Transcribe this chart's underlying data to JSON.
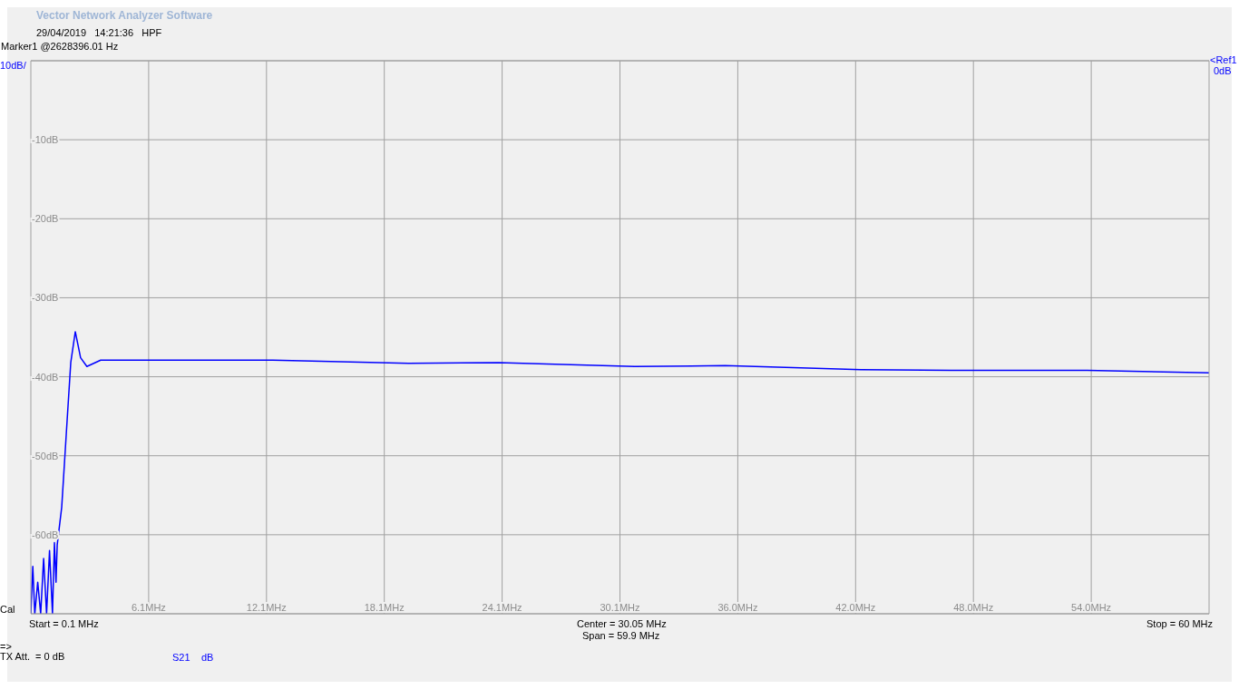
{
  "chart_data": {
    "type": "line",
    "title": "Vector Network Analyzer Software",
    "subtitle": "29/04/2019   14:21:36   HPF",
    "annotations": [
      "Marker1 @2628396.01 Hz",
      "10dB/",
      "<Ref1",
      "0dB",
      "Cal",
      "Start = 0.1 MHz",
      "Center = 30.05 MHz",
      "Span = 59.9 MHz",
      "Stop = 60 MHz",
      "=>",
      "TX Att.  = 0 dB",
      "dB"
    ],
    "series": [
      {
        "name": "S21",
        "color": "#0000ff",
        "x": [
          0.1,
          0.2,
          0.3,
          0.45,
          0.6,
          0.75,
          0.9,
          1.05,
          1.2,
          1.3,
          1.38,
          1.44,
          1.67,
          1.9,
          2.13,
          2.36,
          2.63,
          2.95,
          3.65,
          5.49,
          12.4,
          19.3,
          23.9,
          30.8,
          35.4,
          42.3,
          46.9,
          53.8,
          60
        ],
        "values": [
          -70,
          -64,
          -70,
          -66,
          -70,
          -63,
          -70,
          -62,
          -70,
          -61,
          -66,
          -61.3,
          -56.5,
          -47.3,
          -38.2,
          -34.3,
          -37.6,
          -38.7,
          -37.9,
          -37.9,
          -37.9,
          -38.3,
          -38.2,
          -38.7,
          -38.6,
          -39.1,
          -39.2,
          -39.2,
          -39.5
        ]
      }
    ],
    "xlim": [
      0.1,
      60
    ],
    "xticks": [
      {
        "value": 6.09,
        "label": "6.1MHz"
      },
      {
        "value": 12.08,
        "label": "12.1MHz"
      },
      {
        "value": 18.07,
        "label": "18.1MHz"
      },
      {
        "value": 24.06,
        "label": "24.1MHz"
      },
      {
        "value": 30.05,
        "label": "30.1MHz"
      },
      {
        "value": 36.04,
        "label": "36.0MHz"
      },
      {
        "value": 42.03,
        "label": "42.0MHz"
      },
      {
        "value": 48.02,
        "label": "48.0MHz"
      },
      {
        "value": 54.01,
        "label": "54.0MHz"
      }
    ],
    "ylim": [
      -70,
      0
    ],
    "yticks": [
      {
        "value": -70,
        "label": null
      },
      {
        "value": -60,
        "label": "-60dB"
      },
      {
        "value": -50,
        "label": "-50dB"
      },
      {
        "value": -40,
        "label": "-40dB"
      },
      {
        "value": -30,
        "label": "-30dB"
      },
      {
        "value": -20,
        "label": "-20dB"
      },
      {
        "value": -10,
        "label": "-10dB"
      },
      {
        "value": 0,
        "label": null
      }
    ],
    "grid": true,
    "legend": "bottom left",
    "marker": "none",
    "line_style": "solid"
  }
}
